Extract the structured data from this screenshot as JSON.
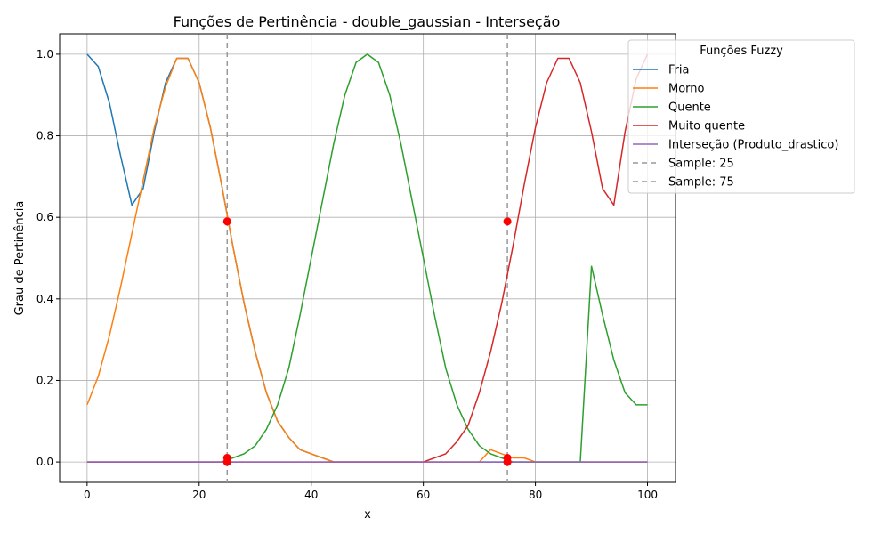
{
  "chart_data": {
    "type": "line",
    "title": "Funções de Pertinência - double_gaussian - Interseção",
    "xlabel": "x",
    "ylabel": "Grau de Pertinência",
    "xlim": [
      -4.9,
      105
    ],
    "ylim": [
      -0.05,
      1.05
    ],
    "xticks": [
      0,
      20,
      40,
      60,
      80,
      100
    ],
    "yticks": [
      0.0,
      0.2,
      0.4,
      0.6,
      0.8,
      1.0
    ],
    "xtick_labels": [
      "0",
      "20",
      "40",
      "60",
      "80",
      "100"
    ],
    "ytick_labels": [
      "0.0",
      "0.2",
      "0.4",
      "0.6",
      "0.8",
      "1.0"
    ],
    "grid": true,
    "legend": {
      "title": "Funções Fuzzy",
      "placement": "top-right, outside the axes"
    },
    "x": [
      0,
      2,
      4,
      6,
      8,
      10,
      12,
      14,
      16,
      18,
      20,
      22,
      24,
      26,
      28,
      30,
      32,
      34,
      36,
      38,
      40,
      42,
      44,
      46,
      48,
      50,
      52,
      54,
      56,
      58,
      60,
      62,
      64,
      66,
      68,
      70,
      72,
      74,
      76,
      78,
      80,
      82,
      84,
      86,
      88,
      90,
      92,
      94,
      96,
      98,
      100
    ],
    "series": [
      {
        "name": "Fria",
        "color": "#1f77b4",
        "style": "solid",
        "values": [
          1.0,
          0.97,
          0.88,
          0.75,
          0.63,
          0.67,
          0.81,
          0.93,
          0.99,
          0.99,
          0.93,
          0.82,
          0.68,
          0.53,
          0.39,
          0.27,
          0.17,
          0.1,
          0.06,
          0.03,
          0.02,
          0.01,
          0.0,
          0.0,
          0.0,
          0.0,
          0.0,
          0.0,
          0.0,
          0.0,
          0.0,
          0.0,
          0.0,
          0.0,
          0.0,
          0.0,
          0.0,
          0.0,
          0.0,
          0.0,
          0.0,
          0.0,
          0.0,
          0.0,
          0.0,
          0.0,
          0.0,
          0.0,
          0.0,
          0.0,
          0.0
        ]
      },
      {
        "name": "Morno",
        "color": "#ff7f0e",
        "style": "solid",
        "values": [
          0.14,
          0.21,
          0.31,
          0.43,
          0.56,
          0.69,
          0.82,
          0.92,
          0.99,
          0.99,
          0.93,
          0.82,
          0.68,
          0.53,
          0.39,
          0.27,
          0.17,
          0.1,
          0.06,
          0.03,
          0.02,
          0.01,
          0.0,
          0.0,
          0.0,
          0.0,
          0.0,
          0.0,
          0.0,
          0.0,
          0.0,
          0.0,
          0.0,
          0.0,
          0.0,
          0.0,
          0.03,
          0.02,
          0.01,
          0.01,
          0.0,
          0.0,
          0.0,
          0.0,
          0.0,
          0.0,
          0.0,
          0.0,
          0.0,
          0.0,
          0.0
        ]
      },
      {
        "name": "Quente",
        "color": "#2ca02c",
        "style": "solid",
        "values": [
          0.0,
          0.0,
          0.0,
          0.0,
          0.0,
          0.0,
          0.0,
          0.0,
          0.0,
          0.0,
          0.0,
          0.0,
          0.0,
          0.01,
          0.02,
          0.04,
          0.08,
          0.14,
          0.23,
          0.36,
          0.5,
          0.64,
          0.78,
          0.9,
          0.98,
          1.0,
          0.98,
          0.9,
          0.78,
          0.64,
          0.5,
          0.36,
          0.23,
          0.14,
          0.08,
          0.04,
          0.02,
          0.01,
          0.0,
          0.0,
          0.0,
          0.0,
          0.0,
          0.0,
          0.0,
          0.48,
          0.36,
          0.25,
          0.17,
          0.14,
          0.14
        ]
      },
      {
        "name": "Muito quente",
        "color": "#d62728",
        "style": "solid",
        "values": [
          0.0,
          0.0,
          0.0,
          0.0,
          0.0,
          0.0,
          0.0,
          0.0,
          0.0,
          0.0,
          0.0,
          0.0,
          0.0,
          0.0,
          0.0,
          0.0,
          0.0,
          0.0,
          0.0,
          0.0,
          0.0,
          0.0,
          0.0,
          0.0,
          0.0,
          0.0,
          0.0,
          0.0,
          0.0,
          0.0,
          0.0,
          0.01,
          0.02,
          0.05,
          0.09,
          0.17,
          0.27,
          0.39,
          0.53,
          0.68,
          0.82,
          0.93,
          0.99,
          0.99,
          0.93,
          0.81,
          0.67,
          0.63,
          0.81,
          0.94,
          1.0
        ]
      },
      {
        "name": "Interseção (Produto_drastico)",
        "color": "#9467bd",
        "style": "solid",
        "values": [
          0,
          0,
          0,
          0,
          0,
          0,
          0,
          0,
          0,
          0,
          0,
          0,
          0,
          0,
          0,
          0,
          0,
          0,
          0,
          0,
          0,
          0,
          0,
          0,
          0,
          0,
          0,
          0,
          0,
          0,
          0,
          0,
          0,
          0,
          0,
          0,
          0,
          0,
          0,
          0,
          0,
          0,
          0,
          0,
          0,
          0,
          0,
          0,
          0,
          0,
          0
        ]
      }
    ],
    "vlines": [
      {
        "name": "Sample: 25",
        "x": 25,
        "color": "#999999",
        "style": "dashed"
      },
      {
        "name": "Sample: 75",
        "x": 75,
        "color": "#999999",
        "style": "dashed"
      }
    ],
    "markers": {
      "color": "#ff0000",
      "points": [
        {
          "x": 25,
          "y": 0.59
        },
        {
          "x": 25,
          "y": 0.01
        },
        {
          "x": 25,
          "y": 0.0
        },
        {
          "x": 75,
          "y": 0.59
        },
        {
          "x": 75,
          "y": 0.01
        },
        {
          "x": 75,
          "y": 0.0
        }
      ]
    }
  }
}
